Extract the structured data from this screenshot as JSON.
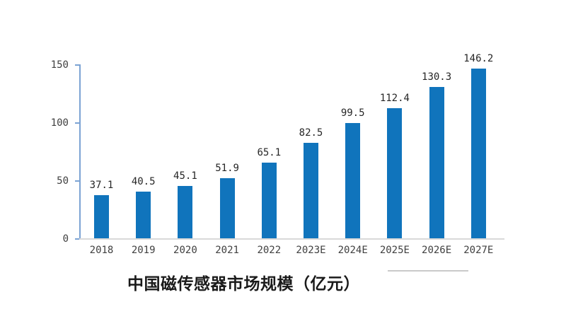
{
  "chart_data": {
    "type": "bar",
    "title": "中国磁传感器市场规模（亿元）",
    "categories": [
      "2018",
      "2019",
      "2020",
      "2021",
      "2022",
      "2023E",
      "2024E",
      "2025E",
      "2026E",
      "2027E"
    ],
    "values": [
      37.1,
      40.5,
      45.1,
      51.9,
      65.1,
      82.5,
      99.5,
      112.4,
      130.3,
      146.2
    ],
    "value_labels": [
      "37.1",
      "40.5",
      "45.1",
      "51.9",
      "65.1",
      "82.5",
      "99.5",
      "112.4",
      "130.3",
      "146.2"
    ],
    "y_ticks": [
      0,
      50,
      100,
      150
    ],
    "y_tick_labels": [
      "0",
      "50",
      "100",
      "150"
    ],
    "ylim": [
      0,
      150
    ],
    "grid": false,
    "legend": "none",
    "value_labels_position": "above-bars",
    "colors": {
      "bar": "#1074bc",
      "axis": "#7ca3d4",
      "baseline": "#d9d9d9",
      "tick_label": "#404040",
      "value_label": "#262626",
      "title": "#1a1a1a",
      "underline": "#c9c9c9"
    }
  }
}
